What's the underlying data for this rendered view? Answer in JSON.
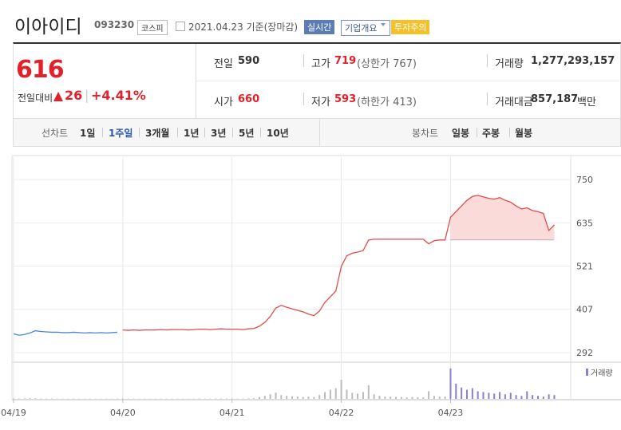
{
  "header": {
    "name": "이아이디",
    "code": "093230",
    "market": "코스피",
    "date": "2021.04.23 기준(장마감)",
    "badges": [
      "실시간",
      "기업개요",
      "투자주의"
    ]
  },
  "quote": {
    "price": 616,
    "change_label": "전일대비",
    "change": 26,
    "change_pct": "+4.41%",
    "cells": [
      {
        "label": "전일",
        "value": "590"
      },
      {
        "label": "고가",
        "value": "719",
        "note": "(상한가 767)"
      },
      {
        "label": "거래량",
        "value": "1,277,293,157"
      },
      {
        "label": "시가",
        "value": "660"
      },
      {
        "label": "저가",
        "value": "593",
        "note": "(하한가 413)"
      },
      {
        "label": "거래대금",
        "value": "857,187",
        "unit": "백만"
      }
    ]
  },
  "tabs": {
    "line_label": "선차트",
    "line": [
      "1일",
      "1주일",
      "3개월",
      "1년",
      "3년",
      "5년",
      "10년"
    ],
    "selected": 1,
    "candle_label": "봉차트",
    "candle": [
      "일봉",
      "주봉",
      "월봉"
    ]
  },
  "chart_data": {
    "type": "line",
    "reference": 590,
    "ylim": [
      271,
      809
    ],
    "yticks": [
      292,
      407,
      521,
      635,
      750
    ],
    "xlim": [
      0,
      102
    ],
    "xticks": [
      {
        "value": 0,
        "label": "04/19"
      },
      {
        "value": 20,
        "label": "04/20"
      },
      {
        "value": 40,
        "label": "04/21"
      },
      {
        "value": 60,
        "label": "04/22"
      },
      {
        "value": 80,
        "label": "04/23"
      }
    ],
    "series": [
      {
        "color": "#4a86d8",
        "values": [
          342,
          338,
          340,
          344,
          350,
          348,
          347,
          346,
          346,
          345,
          345,
          346,
          345,
          344,
          345,
          344,
          345,
          344,
          345,
          346,
          null,
          null,
          null,
          null,
          null,
          null,
          null,
          null,
          null,
          null,
          null,
          null,
          null,
          null,
          null,
          null,
          null,
          null,
          null,
          null,
          null,
          null,
          null,
          null,
          null,
          null,
          null,
          null,
          null,
          null,
          null,
          null,
          null,
          null,
          null,
          null,
          null,
          null,
          null,
          null,
          null,
          null,
          null,
          null,
          null,
          null,
          null,
          null,
          null,
          null,
          null,
          null,
          null,
          null,
          null,
          null,
          null,
          null,
          null,
          null,
          null,
          null,
          null,
          null,
          null,
          null,
          null,
          null,
          null,
          null,
          null,
          null,
          null,
          null,
          null,
          null,
          null,
          null,
          null,
          null
        ]
      },
      {
        "color": "#e34b4b",
        "values": [
          null,
          null,
          null,
          null,
          null,
          null,
          null,
          null,
          null,
          null,
          null,
          null,
          null,
          null,
          null,
          null,
          null,
          null,
          null,
          null,
          352,
          351,
          352,
          351,
          352,
          352,
          352,
          353,
          352,
          353,
          353,
          353,
          352,
          353,
          354,
          354,
          353,
          354,
          355,
          354,
          354,
          354,
          353,
          355,
          356,
          362,
          372,
          388,
          410,
          417,
          412,
          408,
          404,
          400,
          394,
          390,
          402,
          425,
          440,
          455,
          520,
          548,
          555,
          558,
          562,
          590,
          592,
          592,
          592,
          592,
          592,
          592,
          592,
          592,
          592,
          592,
          580,
          588,
          590,
          590,
          650,
          665,
          680,
          695,
          705,
          708,
          704,
          700,
          698,
          702,
          695,
          690,
          680,
          672,
          675,
          668,
          665,
          660,
          615,
          630
        ]
      }
    ],
    "volume": {
      "name": "거래량",
      "color": "#8a7fd0",
      "ylim": [
        0,
        45000000
      ],
      "values": [
        600000,
        500000,
        700000,
        900000,
        800000,
        500000,
        400000,
        500000,
        400000,
        400000,
        300000,
        400000,
        300000,
        300000,
        400000,
        300000,
        300000,
        400000,
        300000,
        500000,
        500000,
        400000,
        400000,
        300000,
        400000,
        300000,
        300000,
        400000,
        300000,
        300000,
        400000,
        300000,
        300000,
        400000,
        500000,
        400000,
        400000,
        500000,
        600000,
        500000,
        500000,
        400000,
        400000,
        600000,
        900000,
        2500000,
        4000000,
        6000000,
        8000000,
        5000000,
        4000000,
        3500000,
        3000000,
        2500000,
        3000000,
        2500000,
        5000000,
        9000000,
        12000000,
        14000000,
        25000000,
        12000000,
        8000000,
        7000000,
        9000000,
        18000000,
        6000000,
        4000000,
        3000000,
        3000000,
        2500000,
        2500000,
        2000000,
        2500000,
        2000000,
        2000000,
        10000000,
        4000000,
        3000000,
        3000000,
        40000000,
        20000000,
        15000000,
        12000000,
        14000000,
        10000000,
        9000000,
        8000000,
        7000000,
        9000000,
        6000000,
        8000000,
        5000000,
        4000000,
        10000000,
        5000000,
        4000000,
        3000000,
        6000000,
        5000000
      ]
    }
  }
}
